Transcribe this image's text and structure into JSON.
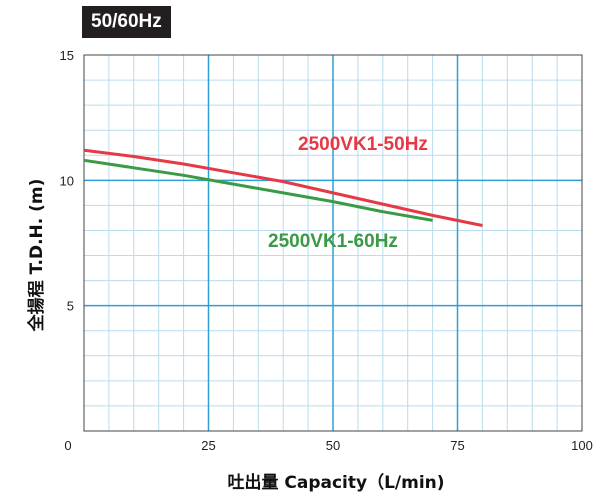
{
  "badge": "50/60Hz",
  "chart_data": {
    "type": "line",
    "xlabel": "吐出量 Capacity（L/min)",
    "ylabel": "全揚程 T.D.H. (m)",
    "xlim": [
      0,
      100
    ],
    "ylim": [
      0,
      15
    ],
    "x_ticks": [
      0,
      25,
      50,
      75,
      100
    ],
    "y_ticks": [
      5,
      10,
      15
    ],
    "x_tick_labels": [
      "0",
      "25",
      "50",
      "75",
      "100"
    ],
    "y_tick_labels": [
      "5",
      "10",
      "15"
    ],
    "grid": true,
    "series": [
      {
        "name": "2500VK1-50Hz",
        "color": "#e53946",
        "x": [
          0,
          10,
          20,
          30,
          40,
          50,
          60,
          70,
          80
        ],
        "y": [
          11.2,
          10.95,
          10.65,
          10.3,
          9.95,
          9.5,
          9.05,
          8.6,
          8.2
        ]
      },
      {
        "name": "2500VK1-60Hz",
        "color": "#3a9a45",
        "x": [
          0,
          10,
          20,
          30,
          40,
          50,
          60,
          70
        ],
        "y": [
          10.8,
          10.5,
          10.2,
          9.85,
          9.5,
          9.15,
          8.75,
          8.4
        ]
      }
    ]
  }
}
